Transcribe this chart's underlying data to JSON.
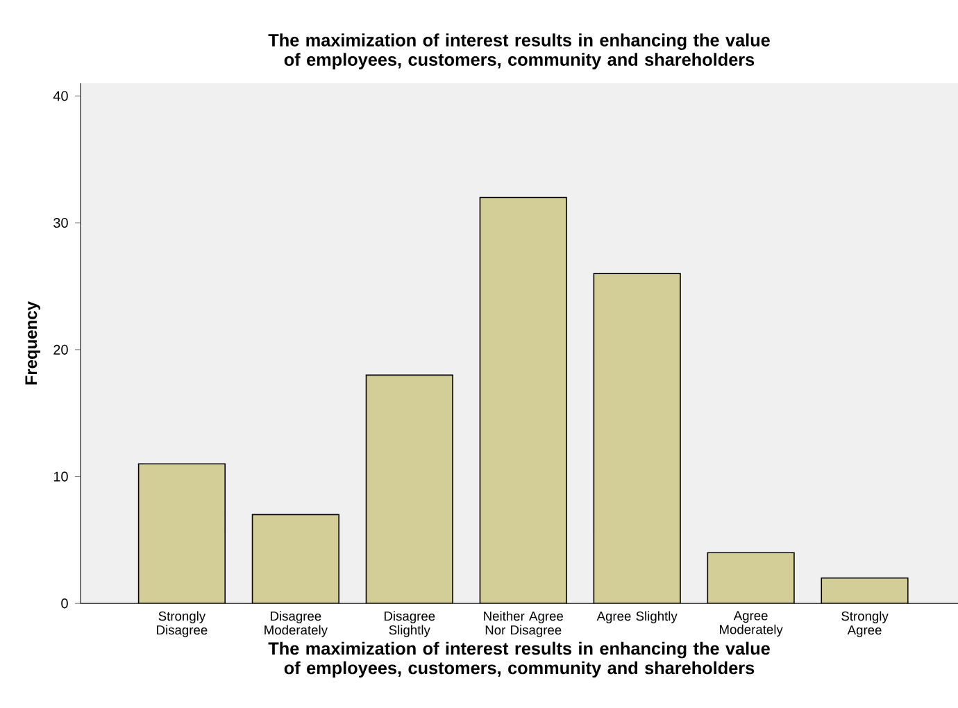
{
  "chart_data": {
    "type": "bar",
    "title": "The maximization of interest results in enhancing the value of employees, customers, community and shareholders",
    "xlabel": "The maximization of interest results in enhancing the value of employees, customers, community and shareholders",
    "ylabel": "Frequency",
    "categories": [
      "Strongly Disagree",
      "Disagree Moderately",
      "Disagree Slightly",
      "Neither Agree Nor Disagree",
      "Agree Slightly",
      "Agree Moderately",
      "Strongly Agree"
    ],
    "values": [
      11,
      7,
      18,
      32,
      26,
      4,
      2
    ],
    "color": "#d3ce97",
    "ylim": [
      0,
      41
    ],
    "yticks": [
      0,
      10,
      20,
      30,
      40
    ],
    "grid": false
  }
}
